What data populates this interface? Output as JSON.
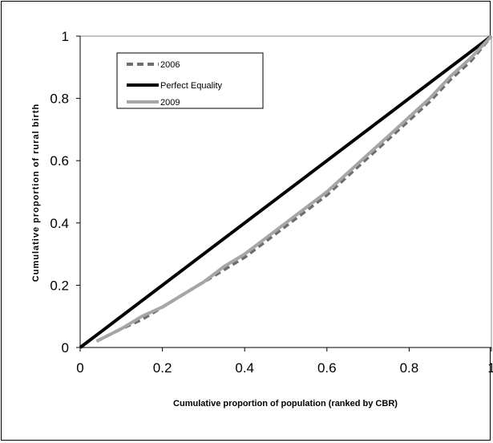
{
  "chart_data": {
    "type": "line",
    "title": "",
    "xlabel": "Cumulative proportion of population (ranked by CBR)",
    "ylabel": "Cumulative proportion of rural birth",
    "xlim": [
      0,
      1
    ],
    "ylim": [
      0,
      1
    ],
    "x_ticks": [
      "0",
      "0.2",
      "0.4",
      "0.6",
      "0.8",
      "1"
    ],
    "y_ticks": [
      "0",
      "0.2",
      "0.4",
      "0.6",
      "0.8",
      "1"
    ],
    "grid": false,
    "legend_position": "top-left",
    "series": [
      {
        "name": "2006",
        "style": "dashed",
        "color": "#6e6e6e",
        "x": [
          0.04,
          0.1,
          0.15,
          0.2,
          0.25,
          0.3,
          0.35,
          0.4,
          0.45,
          0.5,
          0.55,
          0.6,
          0.65,
          0.7,
          0.75,
          0.8,
          0.85,
          0.9,
          0.95,
          1.0
        ],
        "y": [
          0.02,
          0.06,
          0.09,
          0.13,
          0.17,
          0.21,
          0.25,
          0.29,
          0.34,
          0.39,
          0.44,
          0.49,
          0.55,
          0.61,
          0.67,
          0.73,
          0.79,
          0.86,
          0.92,
          1.0
        ]
      },
      {
        "name": "Perfect Equality",
        "style": "solid",
        "color": "#000000",
        "x": [
          0,
          1
        ],
        "y": [
          0,
          1
        ]
      },
      {
        "name": "2009",
        "style": "solid",
        "color": "#a6a6a6",
        "x": [
          0.04,
          0.1,
          0.15,
          0.2,
          0.25,
          0.3,
          0.35,
          0.4,
          0.45,
          0.5,
          0.55,
          0.6,
          0.65,
          0.7,
          0.75,
          0.8,
          0.85,
          0.9,
          0.95,
          1.0
        ],
        "y": [
          0.02,
          0.06,
          0.1,
          0.13,
          0.17,
          0.21,
          0.26,
          0.3,
          0.35,
          0.4,
          0.45,
          0.5,
          0.56,
          0.62,
          0.68,
          0.74,
          0.8,
          0.87,
          0.93,
          1.0
        ]
      }
    ]
  }
}
